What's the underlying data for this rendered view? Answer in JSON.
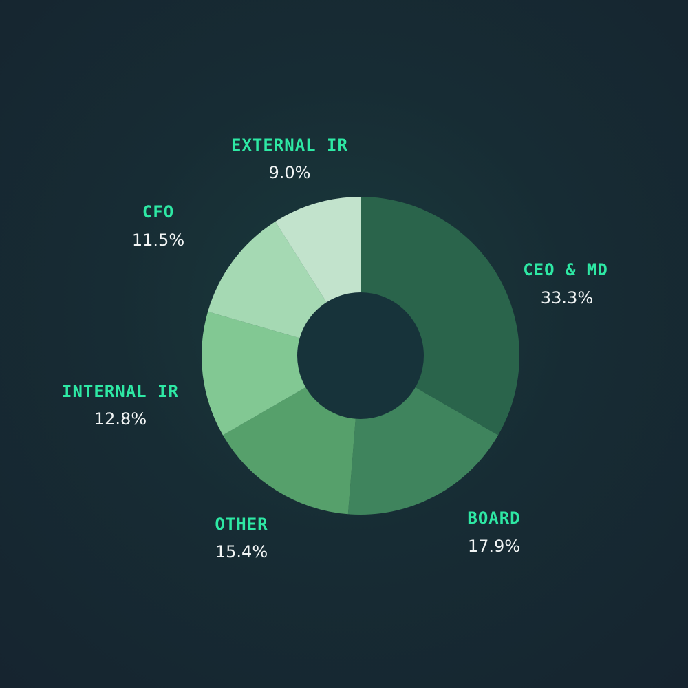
{
  "chart_data": {
    "type": "pie",
    "style": "donut",
    "slices": [
      {
        "label": "CEO & MD",
        "value": 33.3,
        "display": "33.3%",
        "color": "#2a644b"
      },
      {
        "label": "BOARD",
        "value": 17.9,
        "display": "17.9%",
        "color": "#3f845d"
      },
      {
        "label": "OTHER",
        "value": 15.4,
        "display": "15.4%",
        "color": "#56a06b"
      },
      {
        "label": "INTERNAL IR",
        "value": 12.8,
        "display": "12.8%",
        "color": "#82c893"
      },
      {
        "label": "CFO",
        "value": 11.5,
        "display": "11.5%",
        "color": "#a5d9b3"
      },
      {
        "label": "EXTERNAL IR",
        "value": 9.0,
        "display": "9.0%",
        "color": "#c2e3cc"
      }
    ],
    "start_angle": "12 o'clock",
    "direction": "clockwise",
    "legend": "none",
    "label_color": "#2ee8a4",
    "value_color": "#f2f5f5",
    "background_color": "#172c34",
    "center_color": "#17333a"
  }
}
